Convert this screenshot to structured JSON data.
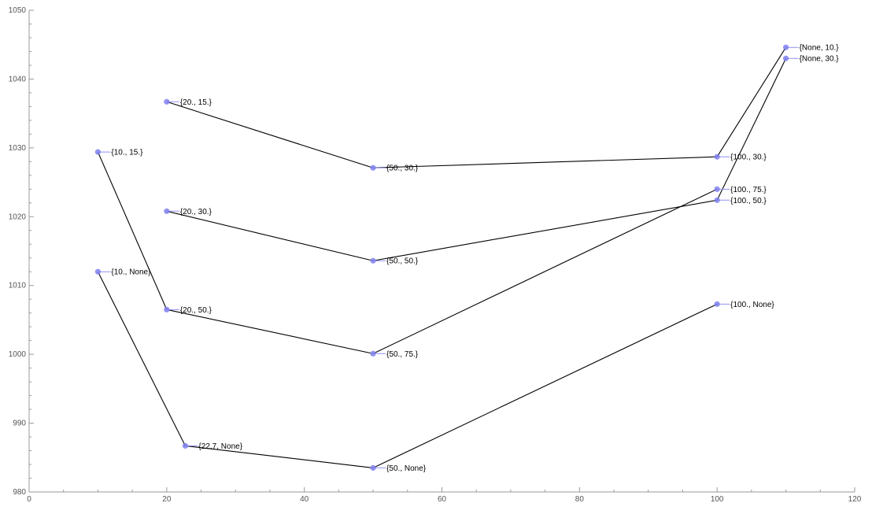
{
  "chart_data": {
    "type": "line",
    "xlim": [
      0,
      120
    ],
    "ylim": [
      980,
      1050
    ],
    "x_ticks": [
      0,
      20,
      40,
      60,
      80,
      100,
      120
    ],
    "y_ticks": [
      980,
      990,
      1000,
      1010,
      1020,
      1030,
      1040,
      1050
    ],
    "x_tick_labels": [
      "0",
      "20",
      "40",
      "60",
      "80",
      "100",
      "120"
    ],
    "y_tick_labels": [
      "980",
      "990",
      "1000",
      "1010",
      "1020",
      "1030",
      "1040",
      "1050"
    ],
    "grid": false,
    "marker_color": "#8080f0",
    "line_color": "#000000",
    "points": [
      {
        "id": "p10_15",
        "x": 10,
        "y": 1029.4,
        "label": "{10., 15.}"
      },
      {
        "id": "p10_none",
        "x": 10,
        "y": 1012.0,
        "label": "{10., None}"
      },
      {
        "id": "p20_15",
        "x": 20,
        "y": 1036.7,
        "label": "{20., 15.}"
      },
      {
        "id": "p20_30",
        "x": 20,
        "y": 1020.8,
        "label": "{20., 30.}"
      },
      {
        "id": "p20_50",
        "x": 20,
        "y": 1006.5,
        "label": "{20., 50.}"
      },
      {
        "id": "p22_none",
        "x": 22.7,
        "y": 986.7,
        "label": "{22.7, None}"
      },
      {
        "id": "p50_30",
        "x": 50,
        "y": 1027.1,
        "label": "{50., 30.}"
      },
      {
        "id": "p50_50",
        "x": 50,
        "y": 1013.6,
        "label": "{50., 50.}"
      },
      {
        "id": "p50_75",
        "x": 50,
        "y": 1000.1,
        "label": "{50., 75.}"
      },
      {
        "id": "p50_none",
        "x": 50,
        "y": 983.5,
        "label": "{50., None}"
      },
      {
        "id": "p100_30",
        "x": 100,
        "y": 1028.7,
        "label": "{100., 30.}"
      },
      {
        "id": "p100_75",
        "x": 100,
        "y": 1024.0,
        "label": "{100., 75.}"
      },
      {
        "id": "p100_50",
        "x": 100,
        "y": 1022.4,
        "label": "{100., 50.}"
      },
      {
        "id": "p100_none",
        "x": 100,
        "y": 1007.3,
        "label": "{100., None}"
      },
      {
        "id": "pnone_10",
        "x": 110,
        "y": 1044.6,
        "label": "{None, 10.}"
      },
      {
        "id": "pnone_30",
        "x": 110,
        "y": 1043.0,
        "label": "{None, 30.}"
      }
    ],
    "edges": [
      [
        "p20_15",
        "p50_30"
      ],
      [
        "p50_30",
        "p100_30"
      ],
      [
        "p100_30",
        "pnone_10"
      ],
      [
        "p20_30",
        "p50_50"
      ],
      [
        "p50_50",
        "p100_50"
      ],
      [
        "p100_50",
        "pnone_30"
      ],
      [
        "p10_15",
        "p20_50"
      ],
      [
        "p20_50",
        "p50_75"
      ],
      [
        "p50_75",
        "p100_75"
      ],
      [
        "p10_none",
        "p22_none"
      ],
      [
        "p22_none",
        "p50_none"
      ],
      [
        "p50_none",
        "p100_none"
      ]
    ]
  }
}
